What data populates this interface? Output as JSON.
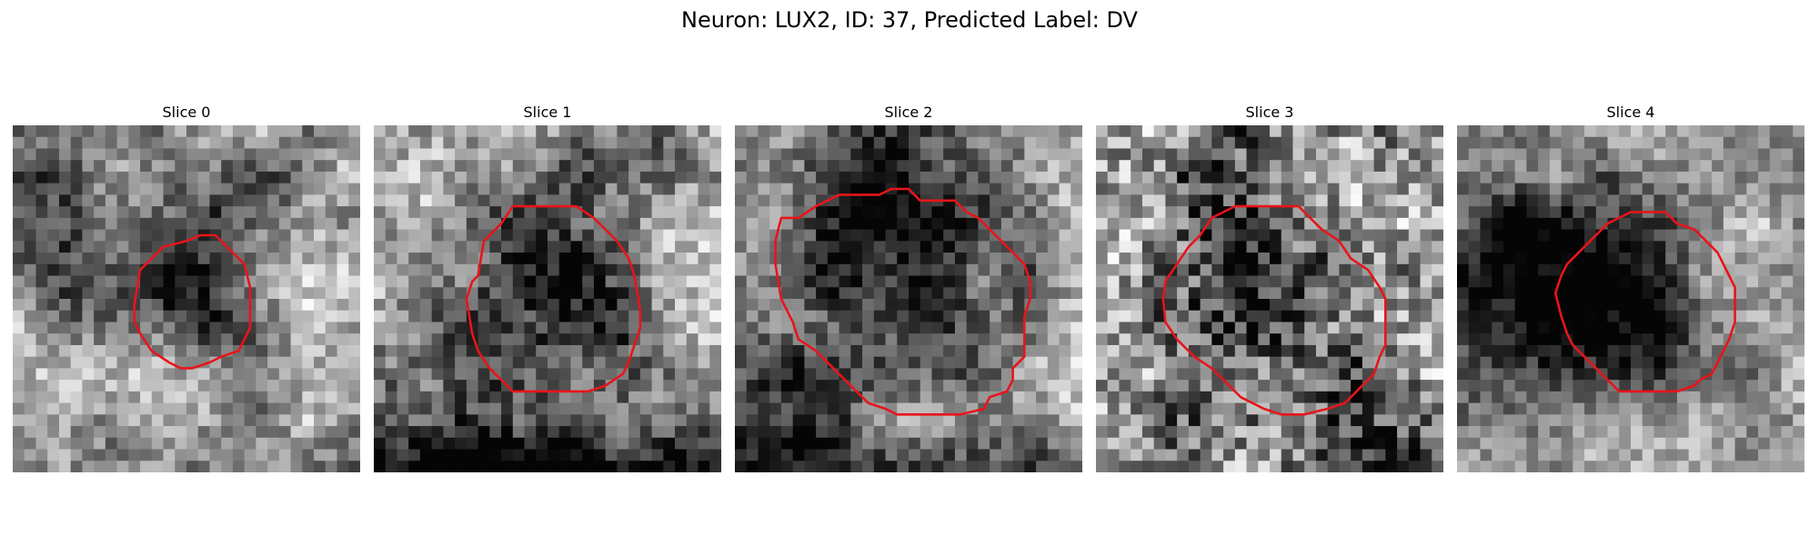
{
  "figure": {
    "suptitle": "Neuron: LUX2, ID: 37, Predicted Label: DV"
  },
  "panels": [
    {
      "title": "Slice 0",
      "contour_color": "#e8141b"
    },
    {
      "title": "Slice 1",
      "contour_color": "#e8141b"
    },
    {
      "title": "Slice 2",
      "contour_color": "#e8141b"
    },
    {
      "title": "Slice 3",
      "contour_color": "#e8141b"
    },
    {
      "title": "Slice 4",
      "contour_color": "#e8141b"
    }
  ]
}
